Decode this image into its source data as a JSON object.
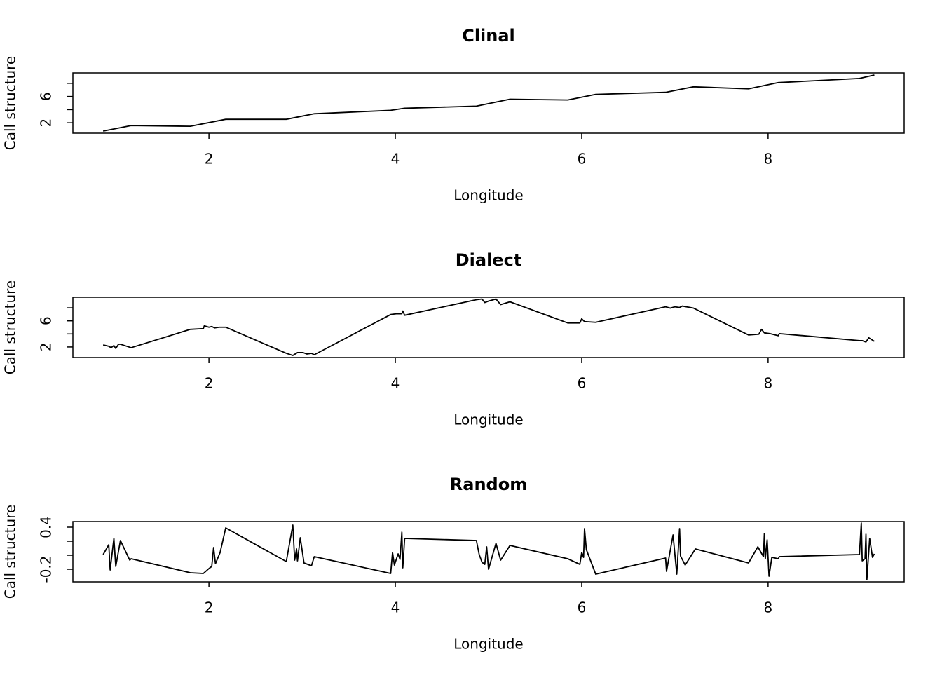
{
  "chart_data": [
    {
      "type": "line",
      "title": "Clinal",
      "xlabel": "Longitude",
      "ylabel": "Call structure",
      "xlim": [
        0.54,
        9.46
      ],
      "xticks": [
        2,
        4,
        6,
        8
      ],
      "ylim": [
        0.42,
        9.58
      ],
      "yticks": [
        2,
        {
          "value": 4,
          "label": null
        },
        6,
        {
          "value": 8,
          "label": null
        }
      ],
      "color": "#000000",
      "x": [
        0.865,
        1.165,
        1.8,
        2.18,
        2.83,
        3.13,
        3.95,
        4.1,
        4.87,
        5.23,
        5.85,
        6.15,
        6.9,
        7.2,
        7.79,
        8.11,
        8.98,
        9.14
      ],
      "values": [
        0.74,
        1.58,
        1.47,
        2.53,
        2.53,
        3.37,
        3.89,
        4.21,
        4.53,
        5.58,
        5.47,
        6.32,
        6.63,
        7.47,
        7.16,
        8.11,
        8.74,
        9.26
      ]
    },
    {
      "type": "line",
      "title": "Dialect",
      "xlabel": "Longitude",
      "ylabel": "Call structure",
      "xlim": [
        0.54,
        9.46
      ],
      "xticks": [
        2,
        4,
        6,
        8
      ],
      "ylim": [
        0.38,
        9.62
      ],
      "yticks": [
        2,
        {
          "value": 4,
          "label": null
        },
        6,
        {
          "value": 8,
          "label": null
        }
      ],
      "color": "#000000",
      "x": [
        0.865,
        0.925,
        0.95,
        0.98,
        1.0,
        1.03,
        1.05,
        1.165,
        1.8,
        1.94,
        1.95,
        2.0,
        2.03,
        2.06,
        2.11,
        2.18,
        2.83,
        2.9,
        2.95,
        3.01,
        3.05,
        3.1,
        3.13,
        3.95,
        4.01,
        4.07,
        4.08,
        4.1,
        4.87,
        4.93,
        4.96,
        5.0,
        5.08,
        5.13,
        5.23,
        5.85,
        5.98,
        6.0,
        6.03,
        6.15,
        6.9,
        6.95,
        7.0,
        7.05,
        7.08,
        7.2,
        7.79,
        7.9,
        7.93,
        7.96,
        8.02,
        8.11,
        8.12,
        8.98,
        9.01,
        9.05,
        9.08,
        9.14
      ],
      "values": [
        2.32,
        2.11,
        1.89,
        2.22,
        1.78,
        2.43,
        2.43,
        1.89,
        4.7,
        4.81,
        5.24,
        5.03,
        5.14,
        4.92,
        5.03,
        5.03,
        1.03,
        0.7,
        1.14,
        1.14,
        0.92,
        1.03,
        0.81,
        6.97,
        7.08,
        7.08,
        7.51,
        6.86,
        9.24,
        9.35,
        8.81,
        9.03,
        9.35,
        8.49,
        8.92,
        5.68,
        5.68,
        6.32,
        5.89,
        5.78,
        8.16,
        7.95,
        8.16,
        8.05,
        8.27,
        7.95,
        3.84,
        3.95,
        4.7,
        4.16,
        4.05,
        3.73,
        4.05,
        2.97,
        2.97,
        2.76,
        3.41,
        2.86
      ]
    },
    {
      "type": "line",
      "title": "Random",
      "xlabel": "Longitude",
      "ylabel": "Call structure",
      "xlim": [
        0.54,
        9.46
      ],
      "xticks": [
        2,
        4,
        6,
        8
      ],
      "ylim": [
        -0.38,
        0.48
      ],
      "yticks": [
        -0.2,
        {
          "value": 0,
          "label": null
        },
        {
          "value": 0.2,
          "label": null
        },
        0.4
      ],
      "color": "#000000",
      "x": [
        0.865,
        0.925,
        0.94,
        0.98,
        1.0,
        1.05,
        1.15,
        1.165,
        1.8,
        1.94,
        2.0,
        2.03,
        2.05,
        2.07,
        2.12,
        2.18,
        2.83,
        2.9,
        2.92,
        2.94,
        2.95,
        2.98,
        3.02,
        3.1,
        3.13,
        3.95,
        3.97,
        3.99,
        4.03,
        4.05,
        4.07,
        4.08,
        4.1,
        4.87,
        4.9,
        4.93,
        4.96,
        4.98,
        5.0,
        5.08,
        5.13,
        5.23,
        5.85,
        5.98,
        6.0,
        6.02,
        6.03,
        6.05,
        6.15,
        6.9,
        6.91,
        6.98,
        7.02,
        7.05,
        7.06,
        7.11,
        7.22,
        7.79,
        7.89,
        7.95,
        7.96,
        7.97,
        7.99,
        8.01,
        8.04,
        8.11,
        8.12,
        8.98,
        9.0,
        9.01,
        9.04,
        9.05,
        9.06,
        9.09,
        9.12,
        9.14
      ],
      "values": [
        0.01,
        0.15,
        -0.21,
        0.24,
        -0.16,
        0.21,
        -0.07,
        -0.05,
        -0.25,
        -0.26,
        -0.19,
        -0.16,
        0.11,
        -0.12,
        0.04,
        0.39,
        -0.09,
        0.43,
        -0.07,
        0.09,
        -0.08,
        0.25,
        -0.11,
        -0.15,
        -0.02,
        -0.26,
        0.04,
        -0.14,
        0.02,
        -0.06,
        0.33,
        -0.18,
        0.24,
        0.21,
        0.01,
        -0.1,
        -0.13,
        0.12,
        -0.2,
        0.17,
        -0.07,
        0.14,
        -0.05,
        -0.13,
        0.04,
        -0.03,
        0.38,
        0.08,
        -0.27,
        -0.04,
        -0.23,
        0.29,
        -0.27,
        0.38,
        -0.01,
        -0.14,
        0.09,
        -0.11,
        0.12,
        -0.02,
        0.31,
        -0.05,
        0.22,
        -0.3,
        -0.03,
        -0.05,
        -0.02,
        0.01,
        0.46,
        -0.08,
        -0.05,
        0.3,
        -0.35,
        0.24,
        -0.03,
        0.02
      ]
    }
  ]
}
